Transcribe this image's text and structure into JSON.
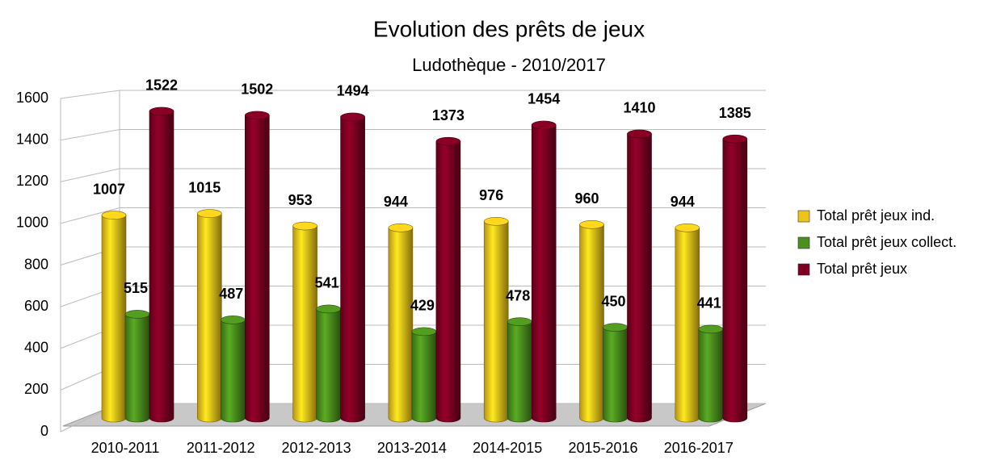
{
  "chart_data": {
    "type": "bar",
    "title": "Evolution des prêts de jeux",
    "subtitle": "Ludothèque - 2010/2017",
    "categories": [
      "2010-2011",
      "2011-2012",
      "2012-2013",
      "2013-2014",
      "2014-2015",
      "2015-2016",
      "2016-2017"
    ],
    "series": [
      {
        "name": "Total prêt jeux ind.",
        "color": "#f0c31a",
        "values": [
          1007,
          1015,
          953,
          944,
          976,
          960,
          944
        ]
      },
      {
        "name": "Total prêt jeux collect.",
        "color": "#4b8f1d",
        "values": [
          515,
          487,
          541,
          429,
          478,
          450,
          441
        ]
      },
      {
        "name": "Total prêt jeux",
        "color": "#7d0022",
        "values": [
          1522,
          1502,
          1494,
          1373,
          1454,
          1410,
          1385
        ]
      }
    ],
    "ylim": [
      0,
      1600
    ],
    "yticks": [
      0,
      200,
      400,
      600,
      800,
      1000,
      1200,
      1400,
      1600
    ],
    "grid": true,
    "legend": "right"
  }
}
